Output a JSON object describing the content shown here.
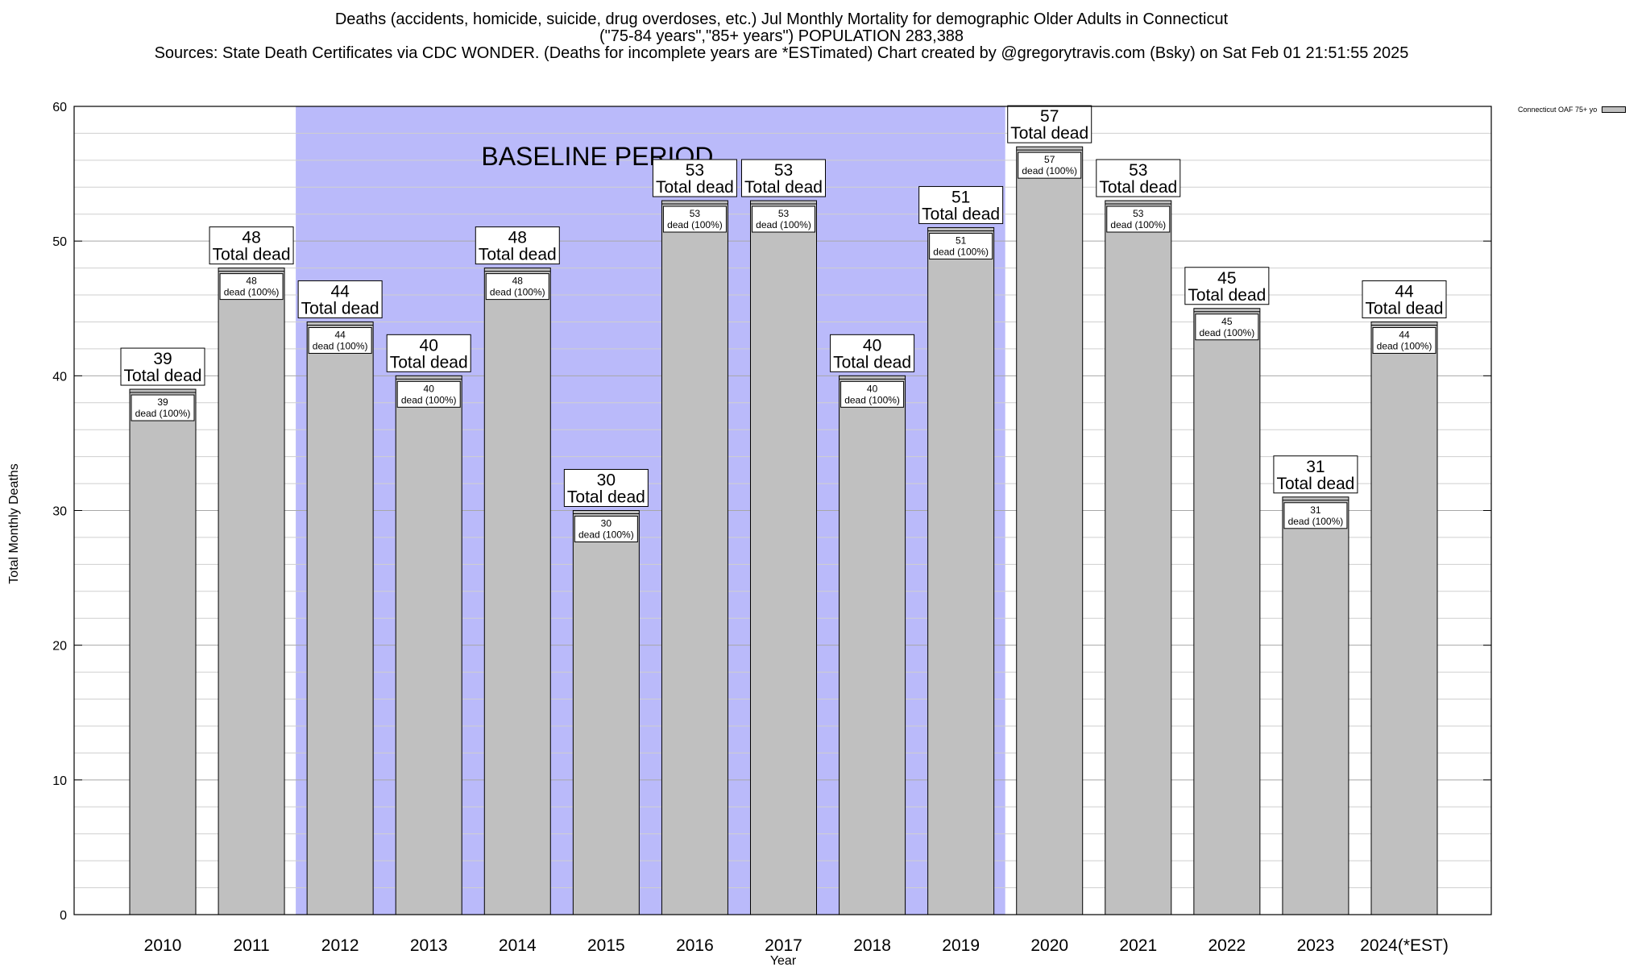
{
  "chart_data": {
    "type": "bar",
    "title_lines": [
      "Deaths (accidents, homicide, suicide, drug overdoses, etc.) Jul Monthly Mortality for demographic Older Adults in Connecticut",
      "(\"75-84 years\",\"85+ years\") POPULATION 283,388",
      "Sources: State Death Certificates via CDC WONDER. (Deaths for incomplete years are *ESTimated)                Chart created by @gregorytravis.com (Bsky) on Sat Feb 01 21:51:55 2025"
    ],
    "xlabel": "Year",
    "ylabel": "Total Monthly Deaths",
    "ylim": [
      0,
      60
    ],
    "yticks": [
      0,
      10,
      20,
      30,
      40,
      50,
      60
    ],
    "minor_grid_step": 2,
    "grid": true,
    "categories": [
      "2010",
      "2011",
      "2012",
      "2013",
      "2014",
      "2015",
      "2016",
      "2017",
      "2018",
      "2019",
      "2020",
      "2021",
      "2022",
      "2023",
      "2024(*EST)"
    ],
    "series": [
      {
        "name": "Connecticut OAF 75+ yo",
        "color": "#c0c0c0",
        "values": [
          39,
          48,
          44,
          40,
          48,
          30,
          53,
          53,
          40,
          51,
          57,
          53,
          45,
          31,
          44
        ]
      }
    ],
    "total_label": "Total dead",
    "inner_label": "dead (100%)",
    "baseline": {
      "label": "BASELINE PERIOD",
      "from_category": "2012",
      "to_category": "2019",
      "color": "#babafa"
    },
    "legend_position": "top-right"
  }
}
